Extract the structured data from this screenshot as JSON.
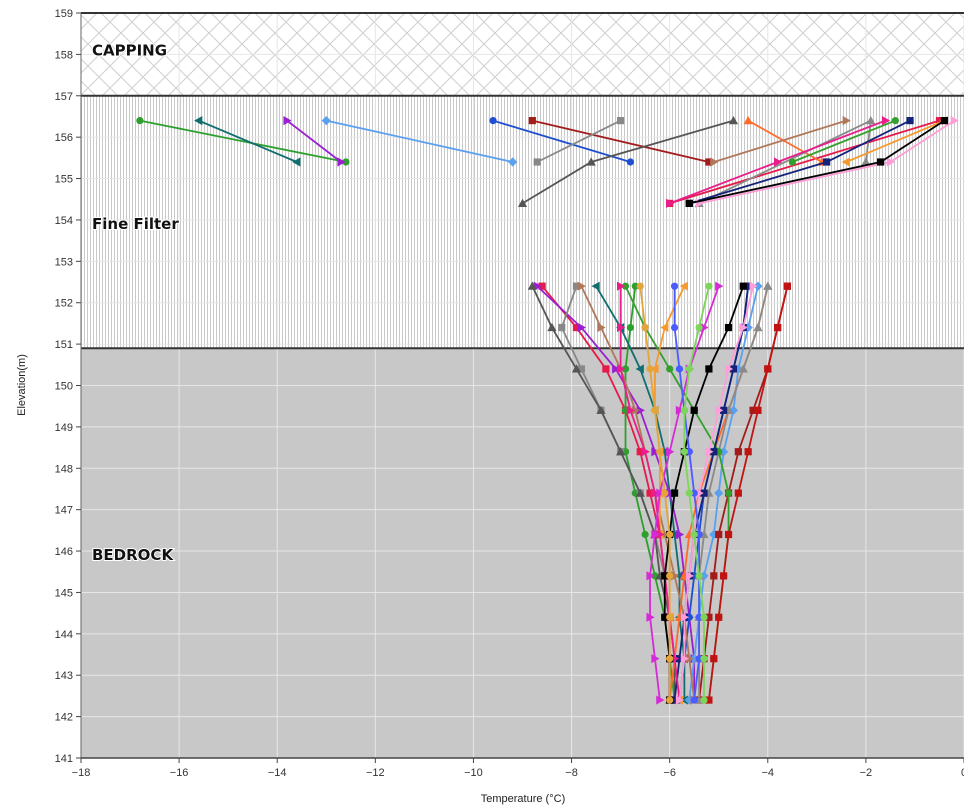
{
  "chart_data": {
    "type": "line",
    "title": "",
    "xlabel": "Temperature (°C)",
    "ylabel": "Elevation(m)",
    "xlim": [
      -18,
      0
    ],
    "ylim": [
      141,
      159
    ],
    "x_ticks": [
      "−18",
      "−16",
      "−14",
      "−12",
      "−10",
      "−8",
      "−6",
      "−4",
      "−2",
      "0"
    ],
    "y_ticks": [
      "141",
      "142",
      "143",
      "144",
      "145",
      "146",
      "147",
      "148",
      "149",
      "150",
      "151",
      "152",
      "153",
      "154",
      "155",
      "156",
      "157",
      "158",
      "159"
    ],
    "grid": true,
    "legend": "none",
    "zones": [
      {
        "name": "CAPPING",
        "from": 157.0,
        "to": 159.0,
        "pattern": "diagonal-cross",
        "label_elevation": 158.1
      },
      {
        "name": "Fine Filter",
        "from": 150.9,
        "to": 157.0,
        "pattern": "vertical-lines",
        "label_elevation": 153.9
      },
      {
        "name": "BEDROCK",
        "from": 141.0,
        "to": 150.9,
        "pattern": "solid-gray",
        "label_elevation": 145.9
      }
    ],
    "elevations": [
      152.4,
      151.4,
      150.4,
      149.4,
      148.4,
      147.4,
      146.4,
      145.4,
      144.4,
      143.4,
      142.4
    ],
    "series": [
      {
        "color": "#e6194b",
        "marker": "square",
        "surface": [
          [
            156.4,
            -0.5
          ],
          [
            154.4,
            -6.0
          ]
        ],
        "values": [
          -8.6,
          -7.9,
          -7.3,
          -6.9,
          -6.6,
          -6.4,
          -6.2,
          -6.1,
          -6.0,
          -6.0,
          -6.0
        ]
      },
      {
        "color": "#2ca02c",
        "marker": "circle",
        "surface": [
          [
            156.4,
            -16.8
          ],
          [
            155.4,
            -12.6
          ]
        ],
        "values": [
          -6.7,
          -6.8,
          -6.9,
          -6.9,
          -6.9,
          -6.7,
          -6.5,
          -6.3,
          -6.1,
          -6.0,
          -5.9
        ]
      },
      {
        "color": "#106e6e",
        "marker": "triangle-left",
        "surface": [
          [
            156.4,
            -15.6
          ],
          [
            155.4,
            -13.6
          ]
        ],
        "values": [
          -7.5,
          -7.0,
          -6.6,
          -6.3,
          -6.1,
          -6.0,
          -5.9,
          -5.8,
          -5.8,
          -5.7,
          -5.7
        ]
      },
      {
        "color": "#9b1fd1",
        "marker": "triangle-right",
        "surface": [
          [
            156.4,
            -13.8
          ],
          [
            155.4,
            -12.7
          ]
        ],
        "values": [
          -8.7,
          -7.8,
          -7.1,
          -6.6,
          -6.3,
          -6.0,
          -5.8,
          -5.7,
          -5.6,
          -5.5,
          -5.5
        ]
      },
      {
        "color": "#5aa0f0",
        "marker": "diamond",
        "surface": [
          [
            156.4,
            -13.0
          ],
          [
            155.4,
            -9.2
          ]
        ],
        "values": [
          -4.2,
          -4.4,
          -4.6,
          -4.7,
          -4.9,
          -5.0,
          -5.1,
          -5.3,
          -5.4,
          -5.5,
          -5.6
        ]
      },
      {
        "color": "#1f4fd1",
        "marker": "circle",
        "surface": [
          [
            156.4,
            -9.6
          ],
          [
            155.4,
            -6.8
          ]
        ],
        "values": [
          -4.4,
          -4.5,
          -4.7,
          -4.9,
          -5.1,
          -5.3,
          -5.4,
          -5.5,
          -5.6,
          -5.7,
          -5.8
        ]
      },
      {
        "color": "#a31b1b",
        "marker": "square",
        "surface": [
          [
            156.4,
            -8.8
          ],
          [
            155.4,
            -5.2
          ]
        ],
        "values": [
          -3.6,
          -3.8,
          -4.0,
          -4.3,
          -4.6,
          -4.8,
          -5.0,
          -5.1,
          -5.2,
          -5.3,
          -5.4
        ]
      },
      {
        "color": "#888888",
        "marker": "square",
        "surface": [
          [
            155.4,
            -8.7
          ],
          [
            156.4,
            -7.0
          ]
        ],
        "values": [
          -7.9,
          -8.2,
          -7.8,
          -7.4,
          -7.0,
          -6.6,
          -6.3,
          -6.1,
          -6.0,
          -5.9,
          -5.9
        ]
      },
      {
        "color": "#555555",
        "marker": "triangle-up",
        "surface": [
          [
            154.4,
            -9.0
          ],
          [
            155.4,
            -7.6
          ],
          [
            156.4,
            -4.7
          ]
        ],
        "values": [
          -8.8,
          -8.4,
          -7.9,
          -7.4,
          -7.0,
          -6.6,
          -6.3,
          -6.2,
          -6.0,
          -5.9,
          -5.9
        ]
      },
      {
        "color": "#ff6b2b",
        "marker": "triangle-up",
        "surface": [
          [
            156.4,
            -4.4
          ],
          [
            155.4,
            -2.9
          ]
        ],
        "values": [
          -4.0,
          -4.2,
          -4.5,
          -4.8,
          -5.1,
          -5.4,
          -5.6,
          -5.7,
          -5.8,
          -5.9,
          -6.0
        ]
      },
      {
        "color": "#b0785a",
        "marker": "triangle-right",
        "surface": [
          [
            155.4,
            -5.1
          ],
          [
            156.4,
            -2.4
          ]
        ],
        "values": [
          -7.8,
          -7.4,
          -7.0,
          -6.7,
          -6.5,
          -6.3,
          -6.1,
          -5.9,
          -5.7,
          -5.6,
          -5.5
        ]
      },
      {
        "color": "#8a8a8a",
        "marker": "triangle-up",
        "surface": [
          [
            154.4,
            -5.4
          ],
          [
            156.4,
            -1.9
          ],
          [
            155.4,
            -2.0
          ]
        ],
        "values": [
          -4.0,
          -4.2,
          -4.5,
          -4.8,
          -5.0,
          -5.2,
          -5.3,
          -5.4,
          -5.4,
          -5.4,
          -5.4
        ]
      },
      {
        "color": "#33a02c",
        "marker": "circle",
        "surface": [
          [
            155.4,
            -3.5
          ],
          [
            156.4,
            -1.4
          ]
        ],
        "values": [
          -6.9,
          -6.5,
          -6.0,
          -5.5,
          -5.0,
          -4.8,
          -4.8,
          -4.9,
          -5.0,
          -5.1,
          -5.2
        ]
      },
      {
        "color": "#f59a2e",
        "marker": "triangle-left",
        "surface": [
          [
            155.4,
            -2.4
          ],
          [
            156.4,
            -0.4
          ]
        ],
        "values": [
          -5.7,
          -6.1,
          -6.3,
          -6.3,
          -6.2,
          -6.2,
          -6.2,
          -6.1,
          -6.0,
          -5.9,
          -5.8
        ]
      },
      {
        "color": "#14227a",
        "marker": "square",
        "surface": [
          [
            154.4,
            -5.6
          ],
          [
            155.4,
            -2.8
          ],
          [
            156.4,
            -1.1
          ]
        ],
        "values": [
          -4.4,
          -4.5,
          -4.7,
          -4.9,
          -5.1,
          -5.3,
          -5.5,
          -5.6,
          -5.7,
          -5.8,
          -5.9
        ]
      },
      {
        "color": "#e91e8c",
        "marker": "triangle-right",
        "surface": [
          [
            154.4,
            -6.0
          ],
          [
            155.4,
            -3.8
          ],
          [
            156.4,
            -1.6
          ]
        ],
        "values": [
          -7.0,
          -7.0,
          -7.0,
          -6.8,
          -6.5,
          -6.3,
          -6.2,
          -6.1,
          -6.0,
          -5.9,
          -5.8
        ]
      },
      {
        "color": "#ff9ed8",
        "marker": "triangle-right",
        "surface": [
          [
            154.4,
            -5.4
          ],
          [
            155.4,
            -1.5
          ],
          [
            156.4,
            -0.2
          ]
        ],
        "values": [
          -4.3,
          -4.5,
          -4.8,
          -5.0,
          -5.2,
          -5.4,
          -5.5,
          -5.6,
          -5.7,
          -5.7,
          -5.8
        ]
      },
      {
        "color": "#000000",
        "marker": "square",
        "surface": [
          [
            154.4,
            -5.6
          ],
          [
            155.4,
            -1.7
          ],
          [
            156.4,
            -0.4
          ]
        ],
        "values": [
          -4.5,
          -4.8,
          -5.2,
          -5.5,
          -5.7,
          -5.9,
          -6.0,
          -6.1,
          -6.1,
          -6.0,
          -6.0
        ]
      },
      {
        "color": "#c21313",
        "marker": "square",
        "surface": [],
        "values": [
          -3.6,
          -3.8,
          -4.0,
          -4.2,
          -4.4,
          -4.6,
          -4.8,
          -4.9,
          -5.0,
          -5.1,
          -5.2
        ]
      },
      {
        "color": "#d62ad6",
        "marker": "triangle-right",
        "surface": [],
        "values": [
          -5.0,
          -5.3,
          -5.6,
          -5.8,
          -6.0,
          -6.2,
          -6.3,
          -6.4,
          -6.4,
          -6.3,
          -6.2
        ]
      },
      {
        "color": "#4a5cff",
        "marker": "circle",
        "surface": [],
        "values": [
          -5.9,
          -5.9,
          -5.8,
          -5.7,
          -5.6,
          -5.5,
          -5.4,
          -5.4,
          -5.4,
          -5.4,
          -5.5
        ]
      },
      {
        "color": "#7cd65a",
        "marker": "circle",
        "surface": [],
        "values": [
          -5.2,
          -5.4,
          -5.6,
          -5.7,
          -5.7,
          -5.6,
          -5.5,
          -5.4,
          -5.3,
          -5.3,
          -5.3
        ]
      },
      {
        "color": "#e3a53a",
        "marker": "circle",
        "surface": [],
        "values": [
          -6.6,
          -6.5,
          -6.4,
          -6.3,
          -6.2,
          -6.1,
          -6.0,
          -6.0,
          -6.0,
          -6.0,
          -6.0
        ]
      }
    ]
  }
}
